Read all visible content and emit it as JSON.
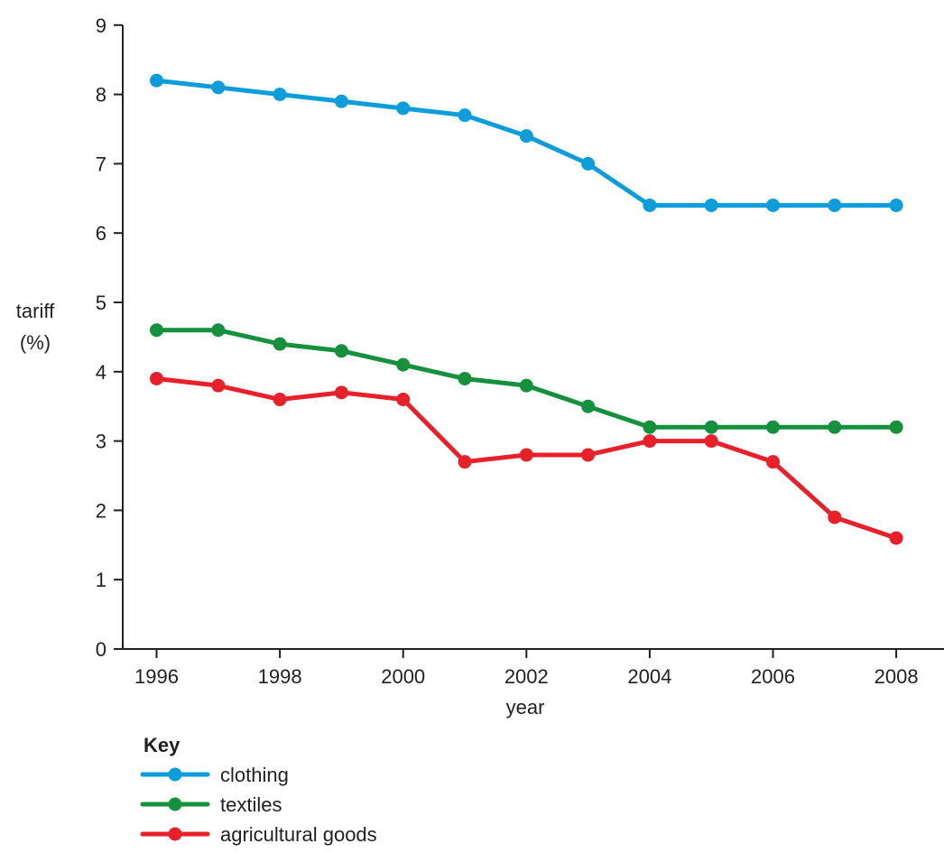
{
  "chart_data": {
    "type": "line",
    "xlabel": "year",
    "ylabel": [
      "tariff",
      "(%)"
    ],
    "x": [
      1996,
      1997,
      1998,
      1999,
      2000,
      2001,
      2002,
      2003,
      2004,
      2005,
      2006,
      2007,
      2008
    ],
    "xticks": [
      "1996",
      "1998",
      "2000",
      "2002",
      "2004",
      "2006",
      "2008"
    ],
    "yticks": [
      "0",
      "1",
      "2",
      "3",
      "4",
      "5",
      "6",
      "7",
      "8",
      "9"
    ],
    "xlim": [
      1995.5,
      2008.8
    ],
    "ylim": [
      0,
      9
    ],
    "grid": false,
    "legend_title": "Key",
    "legend_position": "bottom-left",
    "series": [
      {
        "name": "clothing",
        "color": "#0d9ddb",
        "values": [
          8.2,
          8.1,
          8.0,
          7.9,
          7.8,
          7.7,
          7.4,
          7.0,
          6.4,
          6.4,
          6.4,
          6.4,
          6.4
        ]
      },
      {
        "name": "textiles",
        "color": "#15913d",
        "values": [
          4.6,
          4.6,
          4.4,
          4.3,
          4.1,
          3.9,
          3.8,
          3.5,
          3.2,
          3.2,
          3.2,
          3.2,
          3.2
        ]
      },
      {
        "name": "agricultural goods",
        "color": "#e8202a",
        "values": [
          3.9,
          3.8,
          3.6,
          3.7,
          3.6,
          2.7,
          2.8,
          2.8,
          3.0,
          3.0,
          2.7,
          1.9,
          1.6
        ]
      }
    ]
  }
}
